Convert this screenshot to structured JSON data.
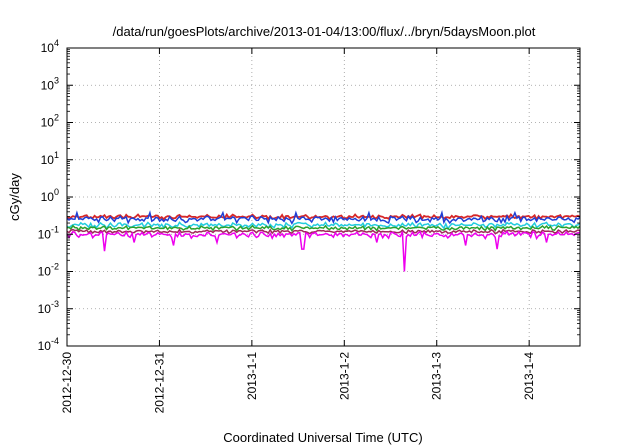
{
  "chart_data": {
    "type": "line",
    "title": "/data/run/goesPlots/archive/2013-01-04/13:00/flux/../bryn/5daysMoon.plot",
    "xlabel": "Coordinated Universal Time (UTC)",
    "ylabel": "cGy/day",
    "y_scale": "log",
    "ylim": [
      0.0001,
      10000
    ],
    "y_ticks": [
      {
        "base": "10",
        "exp": "4"
      },
      {
        "base": "10",
        "exp": "3"
      },
      {
        "base": "10",
        "exp": "2"
      },
      {
        "base": "10",
        "exp": "1"
      },
      {
        "base": "10",
        "exp": "0"
      },
      {
        "base": "10",
        "exp": "-1"
      },
      {
        "base": "10",
        "exp": "-2"
      },
      {
        "base": "10",
        "exp": "-3"
      },
      {
        "base": "10",
        "exp": "-4"
      }
    ],
    "x_ticks": [
      "2012-12-30",
      "2012-12-31",
      "2013-1-1",
      "2013-1-2",
      "2013-1-3",
      "2013-1-4"
    ],
    "x_range_days": [
      0,
      5.55
    ],
    "grid": true,
    "series": [
      {
        "color": "#d62728",
        "base": 0.3,
        "amp": 0.14
      },
      {
        "color": "#1f3fd6",
        "base": 0.26,
        "amp": 0.22
      },
      {
        "color": "#22ccdd",
        "base": 0.18,
        "amp": 0.18
      },
      {
        "color": "#2ca02c",
        "base": 0.15,
        "amp": 0.14
      },
      {
        "color": "#a0285a",
        "base": 0.12,
        "amp": 0.12
      },
      {
        "color": "#ee00ee",
        "base": 0.1,
        "amp": 0.2,
        "dips": [
          [
            0.4,
            0.035
          ],
          [
            0.72,
            0.06
          ],
          [
            1.15,
            0.05
          ],
          [
            1.63,
            0.06
          ],
          [
            2.55,
            0.04
          ],
          [
            3.35,
            0.06
          ],
          [
            3.65,
            0.01
          ],
          [
            4.32,
            0.05
          ],
          [
            4.65,
            0.04
          ],
          [
            5.18,
            0.06
          ]
        ]
      }
    ]
  }
}
